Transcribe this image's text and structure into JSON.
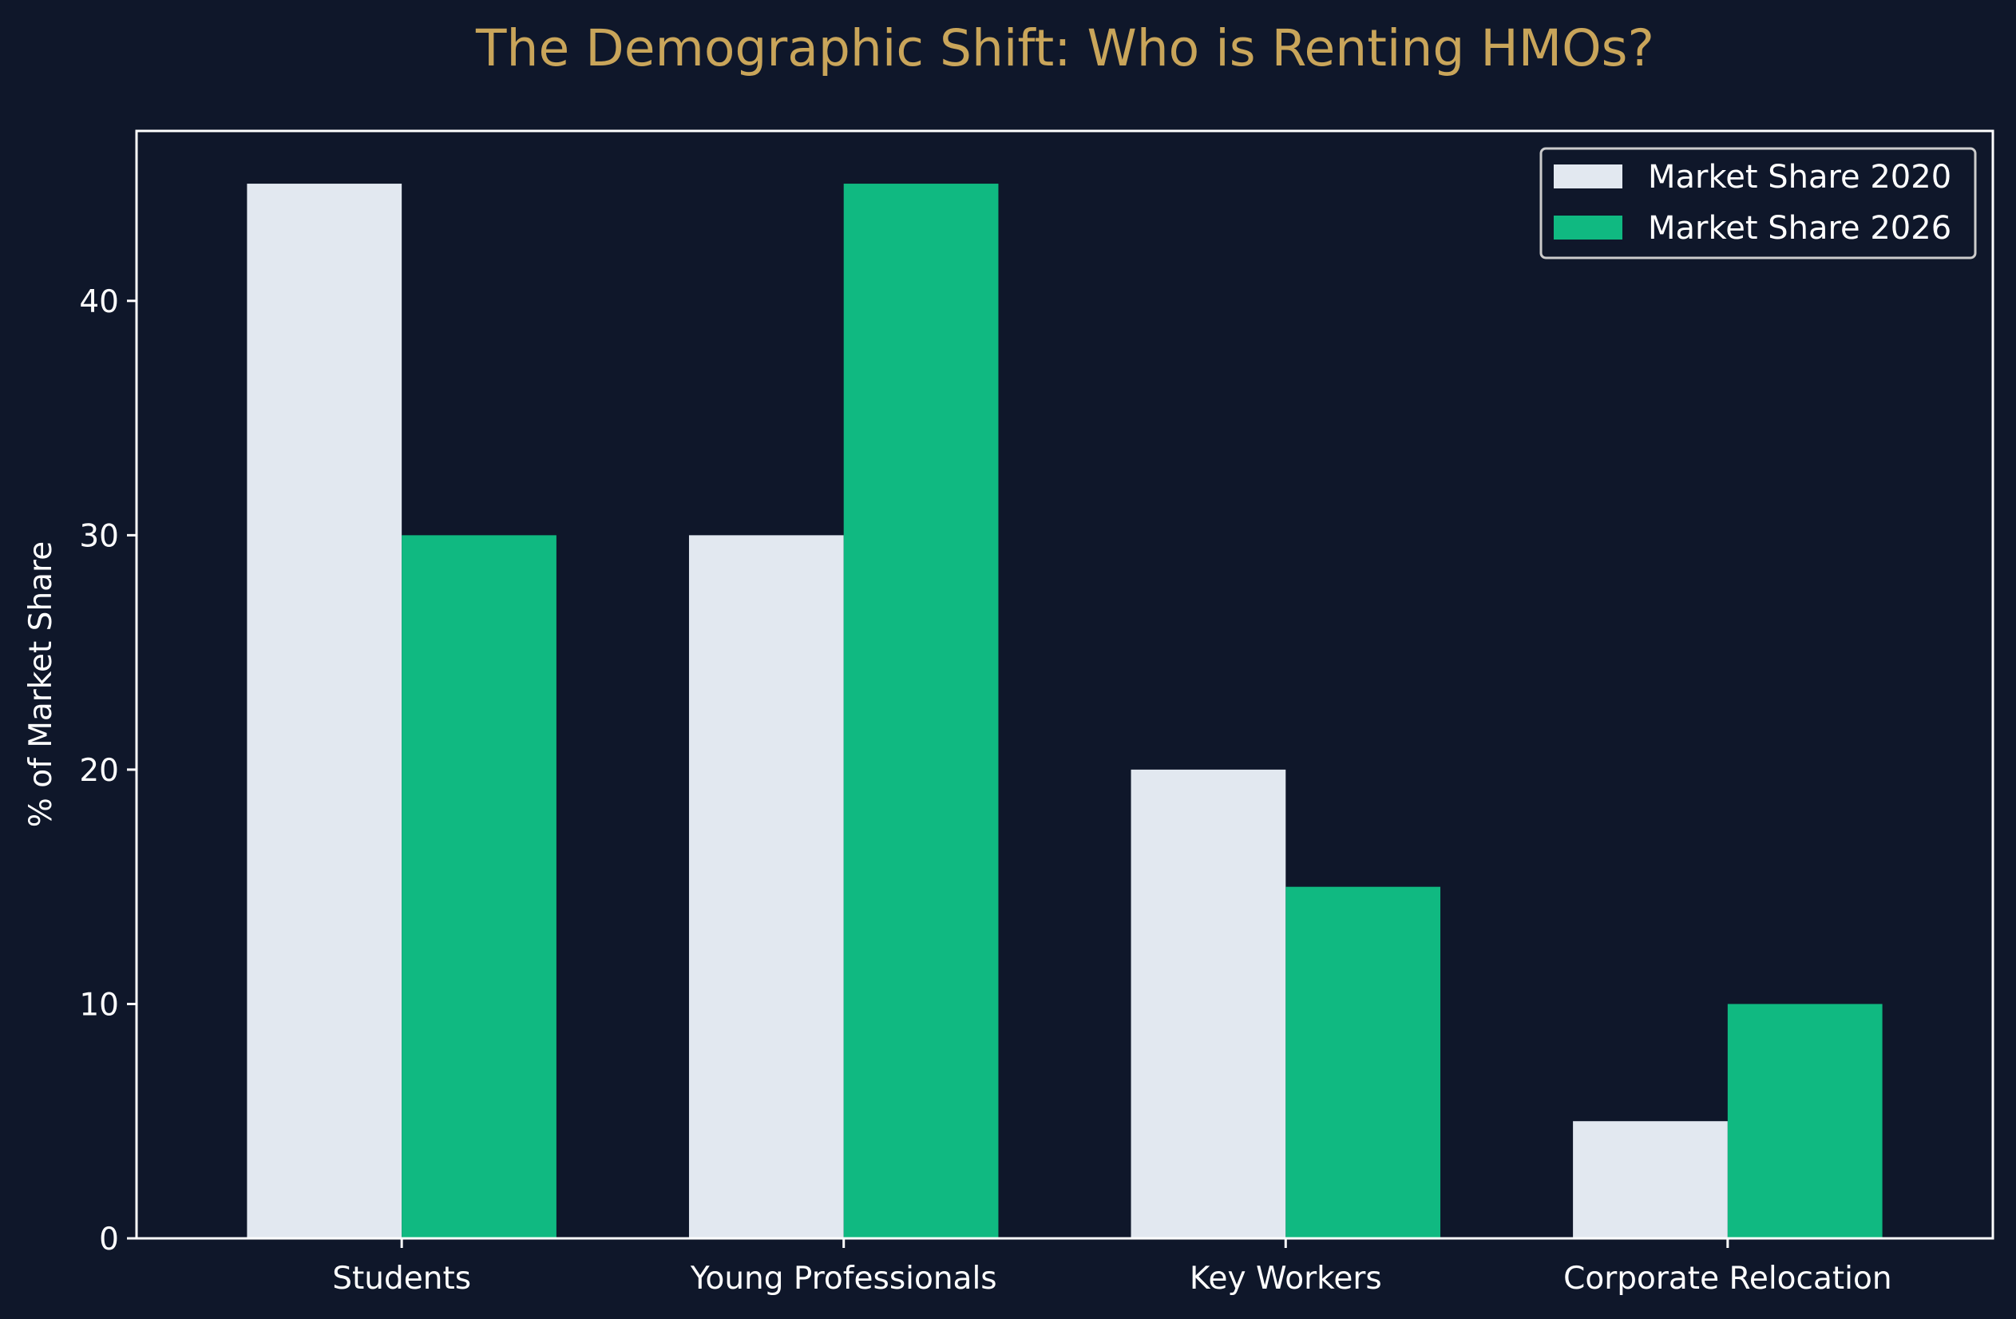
{
  "chart_data": {
    "type": "bar",
    "title": "The Demographic Shift: Who is Renting HMOs?",
    "xlabel": "",
    "ylabel": "% of Market Share",
    "categories": [
      "Students",
      "Young Professionals",
      "Key Workers",
      "Corporate Relocation"
    ],
    "series": [
      {
        "name": "Market Share 2020",
        "values": [
          45,
          30,
          20,
          5
        ],
        "color": "#e2e8f0"
      },
      {
        "name": "Market Share 2026",
        "values": [
          30,
          45,
          15,
          10
        ],
        "color": "#10b981"
      }
    ],
    "ylim": [
      0,
      47.25
    ],
    "yticks": [
      0,
      10,
      20,
      30,
      40
    ],
    "grid": false,
    "legend_position": "top-right"
  },
  "colors": {
    "background": "#0f172a",
    "title": "#c9a55a",
    "text": "#ffffff",
    "axes": "#ffffff"
  }
}
